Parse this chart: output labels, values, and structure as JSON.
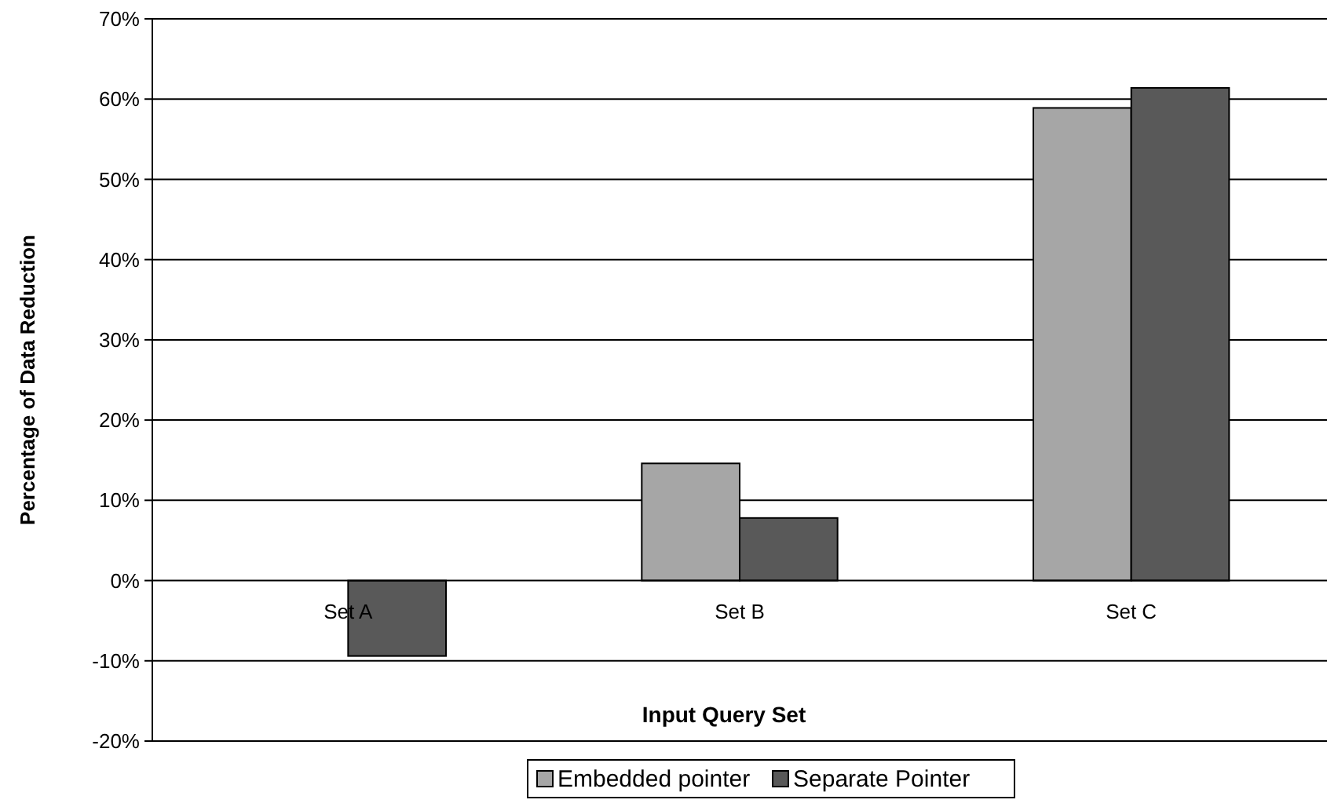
{
  "chart_data": {
    "type": "bar",
    "xlabel": "Input Query Set",
    "ylabel": "Percentage of Data Reduction",
    "categories": [
      "Set A",
      "Set B",
      "Set C"
    ],
    "series": [
      {
        "name": "Embedded pointer",
        "color": "#a6a6a6",
        "values": [
          0,
          14.6,
          58.9
        ]
      },
      {
        "name": "Separate Pointer",
        "color": "#595959",
        "values": [
          -9.4,
          7.8,
          61.4
        ]
      }
    ],
    "ylim": [
      -20,
      70
    ],
    "yticks": [
      {
        "value": -20,
        "label": "-20%"
      },
      {
        "value": -10,
        "label": "-10%"
      },
      {
        "value": 0,
        "label": "0%"
      },
      {
        "value": 10,
        "label": "10%"
      },
      {
        "value": 20,
        "label": "20%"
      },
      {
        "value": 30,
        "label": "30%"
      },
      {
        "value": 40,
        "label": "40%"
      },
      {
        "value": 50,
        "label": "50%"
      },
      {
        "value": 60,
        "label": "60%"
      },
      {
        "value": 70,
        "label": "70%"
      }
    ],
    "grid": "y",
    "legend": "bottom"
  }
}
